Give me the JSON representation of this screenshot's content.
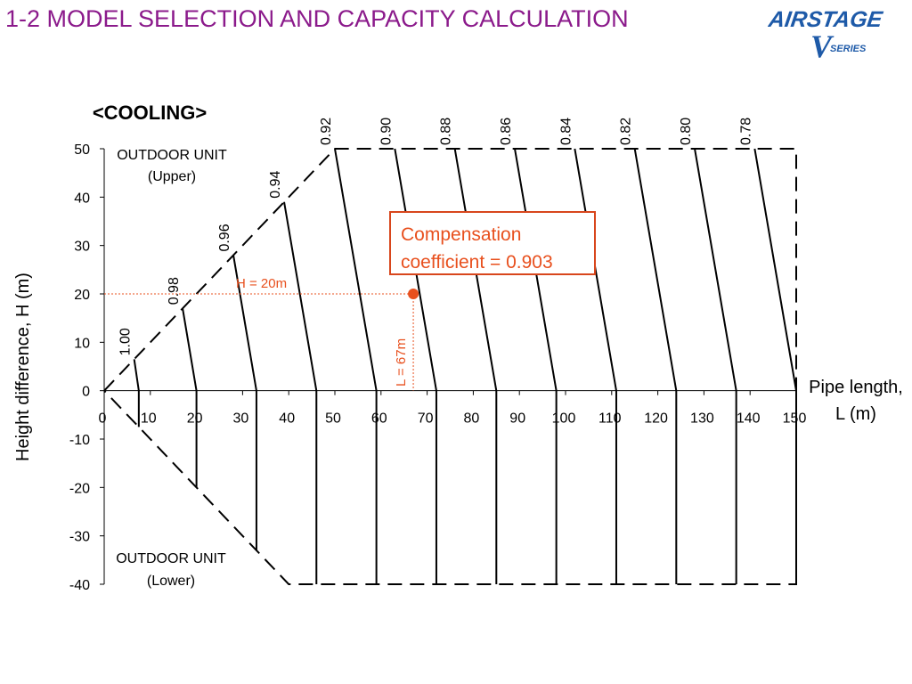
{
  "page": {
    "title": "1-2 MODEL SELECTION AND CAPACITY CALCULATION"
  },
  "logo": {
    "brand": "AIRSTAGE",
    "series_letter": "V",
    "series_word": "SERIES"
  },
  "colors": {
    "title": "#8b1a8b",
    "annotation": "#e8501e",
    "callout_border": "#d8461c",
    "logo": "#1e5aa8"
  },
  "chart_data": {
    "type": "line",
    "title": "<COOLING>",
    "xlabel": "Pipe length,",
    "xlabel_unit": "L (m)",
    "ylabel": "Height difference,  H (m)",
    "xlim": [
      0,
      150
    ],
    "ylim": [
      -40,
      50
    ],
    "x_ticks": [
      "0",
      "10",
      "20",
      "30",
      "40",
      "50",
      "60",
      "70",
      "80",
      "90",
      "100",
      "110",
      "120",
      "130",
      "140",
      "150"
    ],
    "y_ticks": [
      "50",
      "40",
      "30",
      "20",
      "10",
      "0",
      "-10",
      "-20",
      "-30",
      "-40"
    ],
    "grid": false,
    "region_labels": {
      "upper": [
        "OUTDOOR UNIT",
        "(Upper)"
      ],
      "lower": [
        "OUTDOOR UNIT",
        "(Lower)"
      ]
    },
    "boundary": [
      {
        "x": 0,
        "y": 0
      },
      {
        "x": 50,
        "y": 50
      },
      {
        "x": 150,
        "y": 50
      },
      {
        "x": 150,
        "y": -40
      },
      {
        "x": 40,
        "y": -40
      },
      {
        "x": 0,
        "y": 0
      }
    ],
    "series": [
      {
        "name": "1.00",
        "points": [
          [
            6.5,
            6.5
          ],
          [
            7.5,
            0
          ],
          [
            7.5,
            -7.5
          ]
        ]
      },
      {
        "name": "0.98",
        "points": [
          [
            17,
            17
          ],
          [
            20,
            0
          ],
          [
            20,
            -20
          ]
        ]
      },
      {
        "name": "0.96",
        "points": [
          [
            28,
            28
          ],
          [
            33,
            0
          ],
          [
            33,
            -33
          ]
        ]
      },
      {
        "name": "0.94",
        "points": [
          [
            39,
            39
          ],
          [
            46,
            0
          ],
          [
            46,
            -40
          ]
        ]
      },
      {
        "name": "0.92",
        "points": [
          [
            50,
            50
          ],
          [
            59,
            0
          ],
          [
            59,
            -40
          ]
        ]
      },
      {
        "name": "0.90",
        "points": [
          [
            63,
            50
          ],
          [
            72,
            0
          ],
          [
            72,
            -40
          ]
        ]
      },
      {
        "name": "0.88",
        "points": [
          [
            76,
            50
          ],
          [
            85,
            0
          ],
          [
            85,
            -40
          ]
        ]
      },
      {
        "name": "0.86",
        "points": [
          [
            89,
            50
          ],
          [
            98,
            0
          ],
          [
            98,
            -40
          ]
        ]
      },
      {
        "name": "0.84",
        "points": [
          [
            102,
            50
          ],
          [
            111,
            0
          ],
          [
            111,
            -40
          ]
        ]
      },
      {
        "name": "0.82",
        "points": [
          [
            115,
            50
          ],
          [
            124,
            0
          ],
          [
            124,
            -40
          ]
        ]
      },
      {
        "name": "0.80",
        "points": [
          [
            128,
            50
          ],
          [
            137,
            0
          ],
          [
            137,
            -40
          ]
        ]
      },
      {
        "name": "0.78",
        "points": [
          [
            141,
            50
          ],
          [
            150,
            0
          ],
          [
            150,
            -40
          ]
        ]
      }
    ],
    "example_point": {
      "x": 67,
      "y": 20
    },
    "annotations": {
      "h_label": "H = 20m",
      "l_label": "L = 67m",
      "callout": [
        "Compensation",
        "coefficient = 0.903"
      ]
    }
  }
}
